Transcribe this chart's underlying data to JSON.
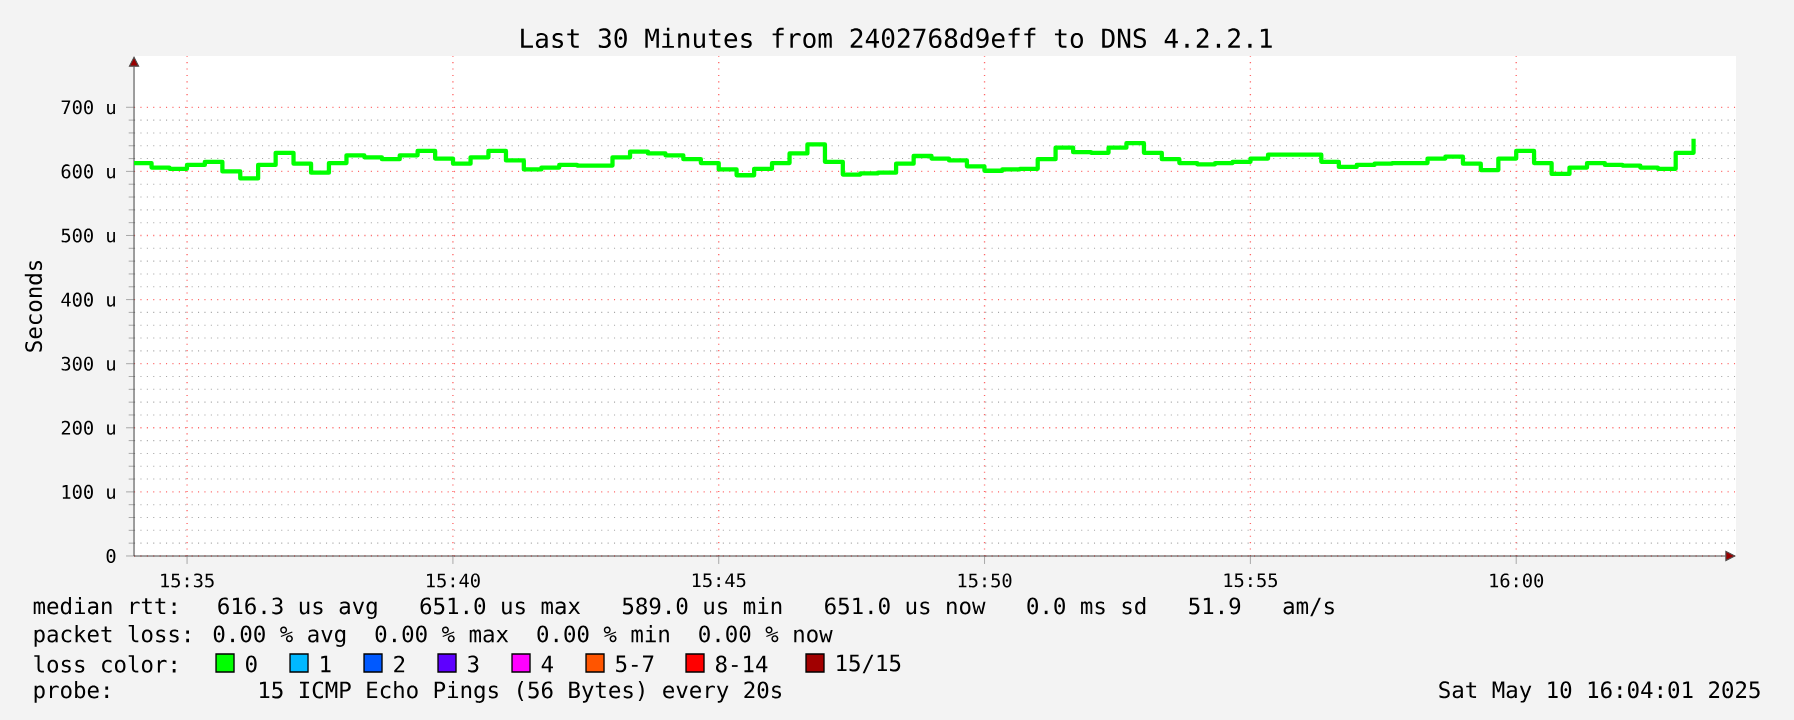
{
  "chart_data": {
    "type": "step",
    "title": "Last 30 Minutes from 2402768d9eff to DNS 4.2.2.1",
    "ylabel": "Seconds",
    "color": "#00ff00",
    "x": [
      15.5667,
      15.5722,
      15.5778,
      15.5833,
      15.5889,
      15.5944,
      15.6,
      15.6056,
      15.6111,
      15.6167,
      15.6222,
      15.6278,
      15.6333,
      15.6389,
      15.6444,
      15.65,
      15.6556,
      15.6611,
      15.6667,
      15.6722,
      15.6778,
      15.6833,
      15.6889,
      15.6944,
      15.7,
      15.7056,
      15.7111,
      15.7167,
      15.7222,
      15.7278,
      15.7333,
      15.7389,
      15.7444,
      15.75,
      15.7556,
      15.7611,
      15.7667,
      15.7722,
      15.7778,
      15.7833,
      15.7889,
      15.7944,
      15.8,
      15.8056,
      15.8111,
      15.8167,
      15.8222,
      15.8278,
      15.8333,
      15.8389,
      15.8444,
      15.85,
      15.8556,
      15.8611,
      15.8667,
      15.8722,
      15.8778,
      15.8833,
      15.8889,
      15.8944,
      15.9,
      15.9056,
      15.9111,
      15.9167,
      15.9222,
      15.9278,
      15.9333,
      15.9389,
      15.9444,
      15.95,
      15.9556,
      15.9611,
      15.9667,
      15.9722,
      15.9778,
      15.9833,
      15.9889,
      15.9944,
      16.0,
      16.0056,
      16.0111,
      16.0167,
      16.0222,
      16.0278,
      16.0333,
      16.0389,
      16.0444,
      16.05,
      16.0556
    ],
    "values": [
      613,
      606,
      604,
      610,
      615,
      600,
      589,
      610,
      629,
      612,
      598,
      613,
      625,
      622,
      619,
      625,
      632,
      620,
      612,
      622,
      632,
      617,
      603,
      606,
      610,
      609,
      609,
      622,
      631,
      628,
      625,
      619,
      613,
      603,
      594,
      604,
      613,
      628,
      642,
      615,
      595,
      597,
      598,
      612,
      624,
      620,
      617,
      608,
      601,
      603,
      604,
      619,
      637,
      630,
      629,
      637,
      644,
      629,
      619,
      613,
      611,
      613,
      615,
      620,
      626,
      626,
      626,
      615,
      607,
      610,
      612,
      613,
      613,
      620,
      623,
      612,
      602,
      620,
      632,
      613,
      596,
      606,
      613,
      610,
      609,
      606,
      604,
      629,
      651
    ],
    "xlim": [
      15.5667,
      16.0689
    ],
    "xticks": [
      {
        "value": 15.58333,
        "label": "15:35"
      },
      {
        "value": 15.66667,
        "label": "15:40"
      },
      {
        "value": 15.75,
        "label": "15:45"
      },
      {
        "value": 15.83333,
        "label": "15:50"
      },
      {
        "value": 15.91667,
        "label": "15:55"
      },
      {
        "value": 16.0,
        "label": "16:00"
      }
    ],
    "ylim": [
      0,
      780
    ],
    "yticks": [
      0,
      {
        "value": 100,
        "label": "100 u"
      },
      {
        "value": 200,
        "label": "200 u"
      },
      {
        "value": 300,
        "label": "300 u"
      },
      {
        "value": 400,
        "label": "400 u"
      },
      {
        "value": 500,
        "label": "500 u"
      },
      {
        "value": 600,
        "label": "600 u"
      },
      {
        "value": 700,
        "label": "700 u"
      }
    ],
    "grid": true,
    "annotations": [
      "median rtt:  616.3 us avg   651.0 us max   589.0 us min   651.0 us now   0.0 ms sd   51.9   am/s",
      "packet loss: 0.00 % avg  0.00 % max  0.00 % min  0.00 % now",
      "loss color:",
      "0",
      "1",
      "2",
      "3",
      "4",
      "5-7",
      "8-14",
      "15/15",
      "probe:        15 ICMP Echo Pings (56 Bytes) every 20s",
      "Sat May 10 16:04:01 2025"
    ]
  }
}
